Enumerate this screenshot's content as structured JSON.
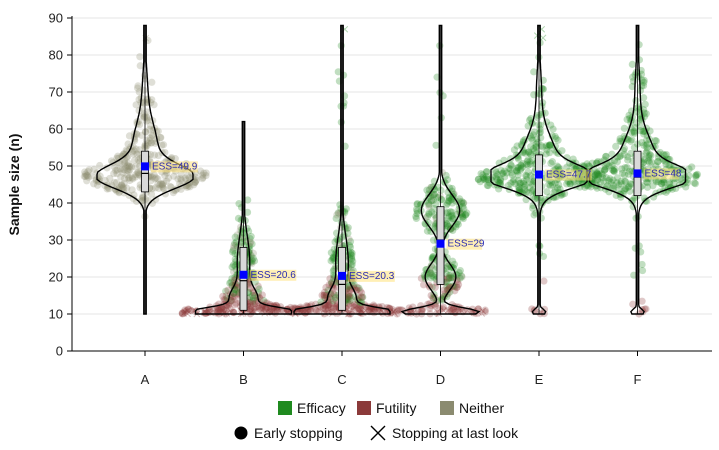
{
  "chart_data": {
    "type": "violin",
    "ylabel": "Sample size (n)",
    "xlabel": "",
    "ylim": [
      0,
      90
    ],
    "yticks": [
      0,
      10,
      20,
      30,
      40,
      50,
      60,
      70,
      80,
      90
    ],
    "grid": true,
    "colors": {
      "efficacy": "#1f8a1f",
      "futility": "#8b3a3a",
      "neither": "#8b8b70",
      "mean_marker": "#0000ff",
      "ess_label_bg": "#ffe27a"
    },
    "categories": [
      "A",
      "B",
      "C",
      "D",
      "E",
      "F"
    ],
    "groups": [
      {
        "name": "A",
        "ess": 49.9,
        "ess_label": "ESS=49.9",
        "median": 48,
        "q1": 43,
        "q3": 54,
        "min": 10,
        "max": 88,
        "outcome_mix": {
          "efficacy": 0.0,
          "futility": 0.0,
          "neither": 1.0
        }
      },
      {
        "name": "B",
        "ess": 20.6,
        "ess_label": "ESS=20.6",
        "median": 19,
        "q1": 11,
        "q3": 28,
        "min": 10,
        "max": 62,
        "outcome_mix": {
          "efficacy": 0.45,
          "futility": 0.45,
          "neither": 0.1
        }
      },
      {
        "name": "C",
        "ess": 20.3,
        "ess_label": "ESS=20.3",
        "median": 18,
        "q1": 11,
        "q3": 28,
        "min": 10,
        "max": 88,
        "outcome_mix": {
          "efficacy": 0.45,
          "futility": 0.45,
          "neither": 0.1
        }
      },
      {
        "name": "D",
        "ess": 29,
        "ess_label": "ESS=29",
        "median": 30,
        "q1": 18,
        "q3": 39,
        "min": 10,
        "max": 88,
        "outcome_mix": {
          "efficacy": 0.55,
          "futility": 0.4,
          "neither": 0.05
        }
      },
      {
        "name": "E",
        "ess": 47.7,
        "ess_label": "ESS=47.7",
        "median": 47,
        "q1": 42,
        "q3": 53,
        "min": 10,
        "max": 88,
        "outcome_mix": {
          "efficacy": 0.92,
          "futility": 0.08,
          "neither": 0.0
        }
      },
      {
        "name": "F",
        "ess": 48,
        "ess_label": "ESS=48",
        "median": 47,
        "q1": 42,
        "q3": 54,
        "min": 10,
        "max": 88,
        "outcome_mix": {
          "efficacy": 0.93,
          "futility": 0.07,
          "neither": 0.0
        }
      }
    ],
    "legend": {
      "placement": "bottom",
      "outcomes": [
        {
          "label": "Efficacy",
          "color": "#1f8a1f"
        },
        {
          "label": "Futility",
          "color": "#8b3a3a"
        },
        {
          "label": "Neither",
          "color": "#8b8b70"
        }
      ],
      "stopping": [
        {
          "label": "Early stopping",
          "marker": "circle"
        },
        {
          "label": "Stopping at last look",
          "marker": "cross"
        }
      ]
    }
  }
}
